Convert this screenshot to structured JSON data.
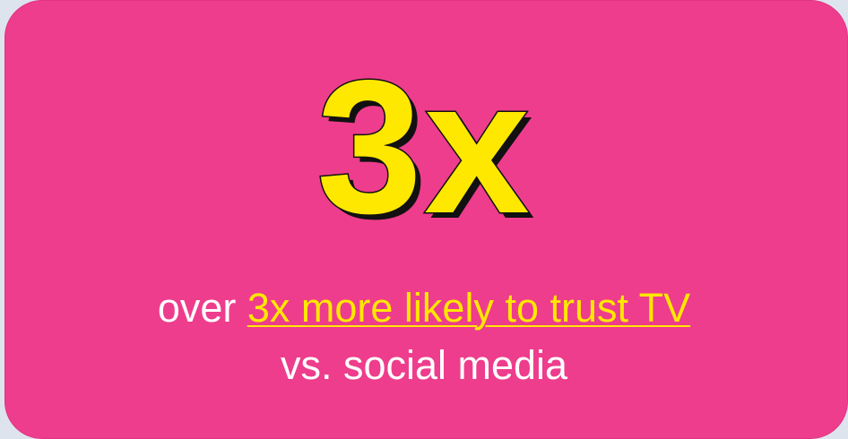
{
  "stat": {
    "value": "3x"
  },
  "caption": {
    "prefix": "over ",
    "highlight": "3x more likely to trust TV",
    "line2": "vs. social media"
  },
  "colors": {
    "background": "#dde4ee",
    "card": "#ee3d8c",
    "stat_fill": "#ffe800",
    "stat_outline": "#111111",
    "highlight_text": "#ffe800",
    "body_text": "#ffffff"
  }
}
